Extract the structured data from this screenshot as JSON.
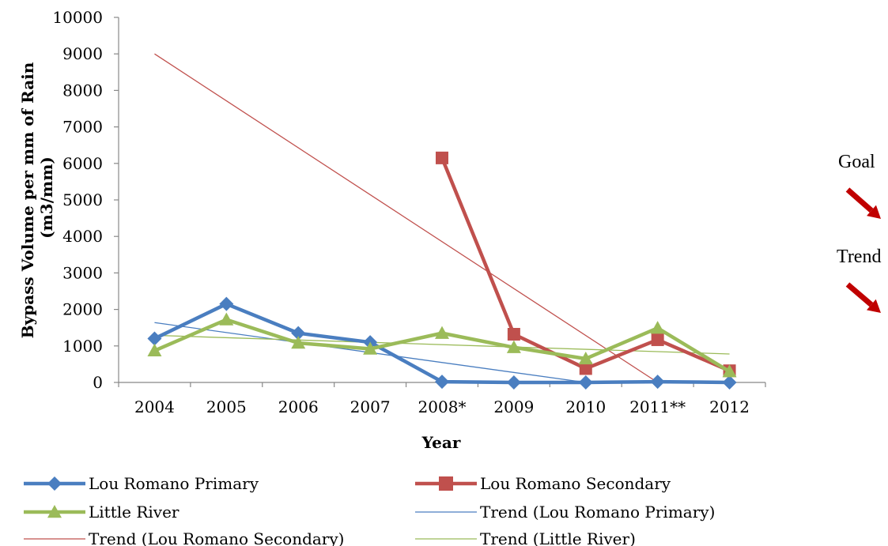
{
  "chart_data": {
    "type": "line",
    "categories": [
      "2004",
      "2005",
      "2006",
      "2007",
      "2008*",
      "2009",
      "2010",
      "2011**",
      "2012"
    ],
    "xlabel": "Year",
    "ylabel": "Bypass Volume per mm of Rain (m3/mm)",
    "ylim": [
      0,
      10000
    ],
    "yticks": [
      "0",
      "1000",
      "2000",
      "3000",
      "4000",
      "5000",
      "6000",
      "7000",
      "8000",
      "9000",
      "10000"
    ],
    "grid": false,
    "legend_position": "bottom",
    "series": [
      {
        "name": "Lou Romano Primary",
        "color": "#4a7ec0",
        "marker": "diamond",
        "values": [
          1200,
          2150,
          1350,
          1100,
          20,
          0,
          0,
          20,
          0
        ]
      },
      {
        "name": "Lou Romano Secondary",
        "color": "#c0504d",
        "marker": "square",
        "values": [
          null,
          null,
          null,
          null,
          6150,
          1320,
          380,
          1170,
          320
        ]
      },
      {
        "name": "Little River",
        "color": "#9bbb59",
        "marker": "triangle",
        "values": [
          870,
          1720,
          1080,
          920,
          1350,
          960,
          650,
          1490,
          300
        ]
      }
    ],
    "trendlines": [
      {
        "name": "Trend (Lou Romano Primary)",
        "color": "#4a7ec0",
        "start": [
          1,
          1640
        ],
        "end": [
          7,
          0
        ]
      },
      {
        "name": "Trend (Lou Romano Secondary)",
        "color": "#c0504d",
        "start": [
          1,
          9000
        ],
        "end": [
          8,
          0
        ]
      },
      {
        "name": "Trend (Little River)",
        "color": "#9bbb59",
        "start": [
          1,
          1290
        ],
        "end": [
          9,
          780
        ]
      }
    ],
    "annotations": [
      {
        "text": "Goal",
        "arrow": "down-right",
        "color": "#c00000"
      },
      {
        "text": "Trend",
        "arrow": "down-right",
        "color": "#c00000"
      }
    ]
  }
}
